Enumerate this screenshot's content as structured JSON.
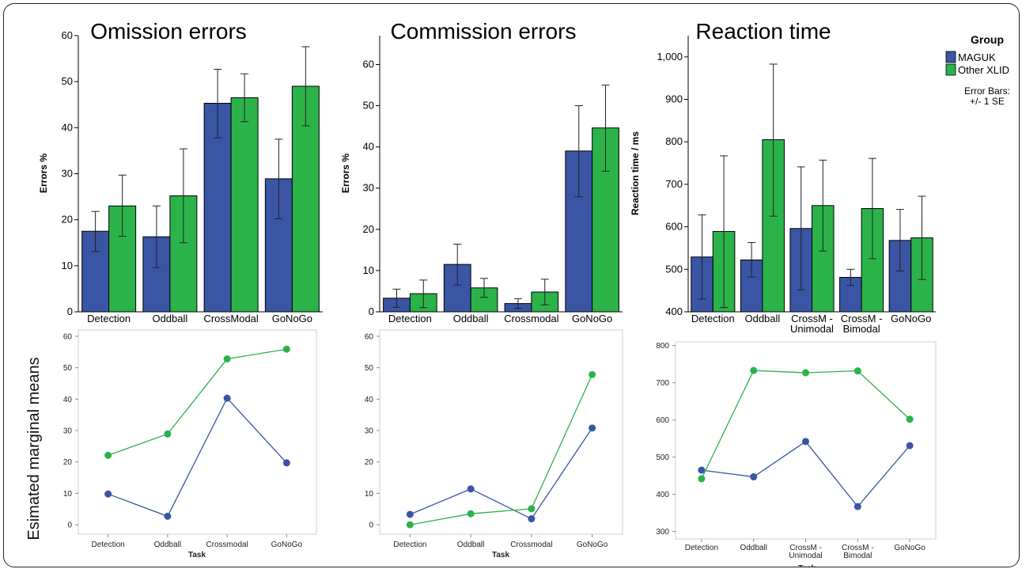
{
  "side_label": "Esimated marginal means",
  "legend": {
    "title": "Group",
    "items": [
      {
        "label": "MAGUK",
        "color": "#3a55a4"
      },
      {
        "label": "Other XLID",
        "color": "#2bb34a"
      }
    ],
    "note_line1": "Error Bars:",
    "note_line2": "+/- 1 SE"
  },
  "colors": {
    "maguk": "#3a55a4",
    "other": "#2bb34a",
    "axis": "#000000"
  },
  "chart_data": [
    {
      "type": "bar",
      "title": "Omission errors",
      "ylabel": "Errors %",
      "xlabel": "",
      "ylim": [
        0,
        60
      ],
      "yticks": [
        "0",
        "10",
        "20",
        "30",
        "40",
        "50",
        "60"
      ],
      "ytick_values": [
        0,
        10,
        20,
        30,
        40,
        50,
        60
      ],
      "categories": [
        [
          "Detection"
        ],
        [
          "Oddball"
        ],
        [
          "CrossModal"
        ],
        [
          "GoNoGo"
        ]
      ],
      "series": [
        {
          "name": "MAGUK",
          "values": [
            17.5,
            16.3,
            45.3,
            28.9
          ],
          "se_low": [
            13.1,
            9.6,
            37.8,
            20.2
          ],
          "se_high": [
            21.8,
            23.0,
            52.7,
            37.5
          ]
        },
        {
          "name": "Other XLID",
          "values": [
            23.0,
            25.2,
            46.5,
            49.0
          ],
          "se_low": [
            16.4,
            15.0,
            41.3,
            40.4
          ],
          "se_high": [
            29.7,
            35.4,
            51.7,
            57.6
          ]
        }
      ]
    },
    {
      "type": "bar",
      "title": "Commission errors",
      "ylabel": "Errors %",
      "xlabel": "",
      "ylim": [
        0,
        67
      ],
      "yticks": [
        "0",
        "10",
        "20",
        "30",
        "40",
        "50",
        "60"
      ],
      "ytick_values": [
        0,
        10,
        20,
        30,
        40,
        50,
        60
      ],
      "categories": [
        [
          "Detection"
        ],
        [
          "Oddball"
        ],
        [
          "Crossmodal"
        ],
        [
          "GoNoGo"
        ]
      ],
      "series": [
        {
          "name": "MAGUK",
          "values": [
            3.3,
            11.5,
            2.0,
            39.0
          ],
          "se_low": [
            1.1,
            6.5,
            0.8,
            27.9
          ],
          "se_high": [
            5.5,
            16.4,
            3.2,
            50.0
          ]
        },
        {
          "name": "Other XLID",
          "values": [
            4.4,
            5.8,
            4.8,
            44.6
          ],
          "se_low": [
            1.0,
            3.5,
            1.7,
            34.1
          ],
          "se_high": [
            7.7,
            8.1,
            7.9,
            55.0
          ]
        }
      ]
    },
    {
      "type": "bar",
      "title": "Reaction time",
      "ylabel": "Reaction time / ms",
      "xlabel": "",
      "ylim": [
        400,
        1050
      ],
      "yticks": [
        "400",
        "500",
        "600",
        "700",
        "800",
        "900",
        "1,000"
      ],
      "ytick_values": [
        400,
        500,
        600,
        700,
        800,
        900,
        1000
      ],
      "categories": [
        [
          "Detection"
        ],
        [
          "Oddball"
        ],
        [
          "CrossM -",
          "Unimodal"
        ],
        [
          "CrossM -",
          "Bimodal"
        ],
        [
          "GoNoGo"
        ]
      ],
      "series": [
        {
          "name": "MAGUK",
          "values": [
            529,
            522,
            596,
            481,
            568
          ],
          "se_low": [
            430,
            482,
            452,
            462,
            496
          ],
          "se_high": [
            628,
            563,
            741,
            500,
            641
          ]
        },
        {
          "name": "Other XLID",
          "values": [
            589,
            805,
            650,
            643,
            574
          ],
          "se_low": [
            410,
            625,
            543,
            525,
            476
          ],
          "se_high": [
            767,
            983,
            757,
            761,
            672
          ]
        }
      ]
    },
    {
      "type": "line",
      "title": "",
      "xlabel": "Task",
      "ylabel": "",
      "ylim": [
        -3,
        62
      ],
      "yticks": [
        "0",
        "10",
        "20",
        "30",
        "40",
        "50",
        "60"
      ],
      "ytick_values": [
        0,
        10,
        20,
        30,
        40,
        50,
        60
      ],
      "categories": [
        [
          "Detection"
        ],
        [
          "Oddball"
        ],
        [
          "Crossmodal"
        ],
        [
          "GoNoGo"
        ]
      ],
      "series": [
        {
          "name": "",
          "group": "maguk",
          "values": [
            9.8,
            2.7,
            40.3,
            19.7
          ]
        },
        {
          "name": "",
          "group": "other",
          "values": [
            22.1,
            28.9,
            52.8,
            55.9
          ]
        }
      ]
    },
    {
      "type": "line",
      "title": "",
      "xlabel": "Task",
      "ylabel": "",
      "ylim": [
        -3,
        62
      ],
      "yticks": [
        "0",
        "10",
        "20",
        "30",
        "40",
        "50",
        "60"
      ],
      "ytick_values": [
        0,
        10,
        20,
        30,
        40,
        50,
        60
      ],
      "categories": [
        [
          "Detection"
        ],
        [
          "Oddball"
        ],
        [
          "Crossmodal"
        ],
        [
          "GoNoGo"
        ]
      ],
      "series": [
        {
          "name": "",
          "group": "maguk",
          "values": [
            3.3,
            11.4,
            1.9,
            30.8
          ]
        },
        {
          "name": "",
          "group": "other",
          "values": [
            0.0,
            3.5,
            5.1,
            47.8
          ]
        }
      ]
    },
    {
      "type": "line",
      "title": "",
      "xlabel": "Task",
      "ylabel": "",
      "ylim": [
        280,
        810
      ],
      "yticks": [
        "300",
        "400",
        "500",
        "600",
        "700",
        "800"
      ],
      "ytick_values": [
        300,
        400,
        500,
        600,
        700,
        800
      ],
      "categories": [
        [
          "Detection"
        ],
        [
          "Oddball"
        ],
        [
          "CrossM -",
          "Unimodal"
        ],
        [
          "CrossM -",
          "Bimodal"
        ],
        [
          "GoNoGo"
        ]
      ],
      "series": [
        {
          "name": "",
          "group": "maguk",
          "values": [
            465,
            447,
            542,
            367,
            531
          ]
        },
        {
          "name": "",
          "group": "other",
          "values": [
            442,
            733,
            727,
            732,
            602
          ]
        }
      ]
    }
  ]
}
